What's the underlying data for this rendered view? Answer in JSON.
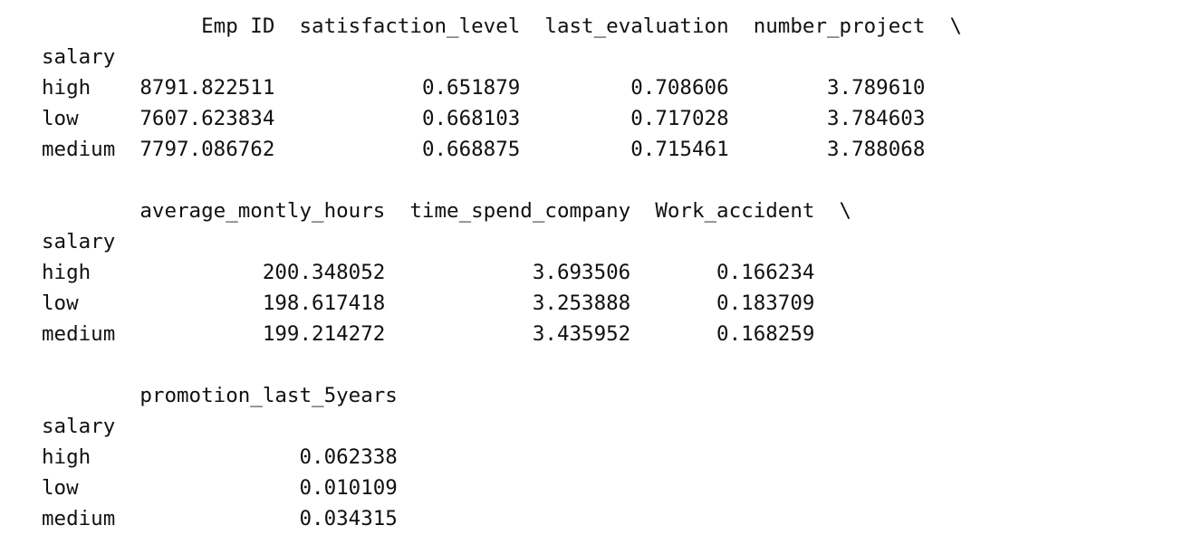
{
  "dataframe": {
    "index_name": "salary",
    "row_labels": [
      "high",
      "low",
      "medium"
    ],
    "blocks": [
      {
        "columns": [
          "Emp ID",
          "satisfaction_level",
          "last_evaluation",
          "number_project"
        ],
        "continued": true,
        "rows": [
          [
            "8791.822511",
            "0.651879",
            "0.708606",
            "3.789610"
          ],
          [
            "7607.623834",
            "0.668103",
            "0.717028",
            "3.784603"
          ],
          [
            "7797.086762",
            "0.668875",
            "0.715461",
            "3.788068"
          ]
        ]
      },
      {
        "columns": [
          "average_montly_hours",
          "time_spend_company",
          "Work_accident"
        ],
        "continued": true,
        "rows": [
          [
            "200.348052",
            "3.693506",
            "0.166234"
          ],
          [
            "198.617418",
            "3.253888",
            "0.183709"
          ],
          [
            "199.214272",
            "3.435952",
            "0.168259"
          ]
        ]
      },
      {
        "columns": [
          "promotion_last_5years"
        ],
        "continued": false,
        "rows": [
          [
            "0.062338"
          ],
          [
            "0.010109"
          ],
          [
            "0.034315"
          ]
        ]
      }
    ],
    "continuation_mark": "\\"
  }
}
